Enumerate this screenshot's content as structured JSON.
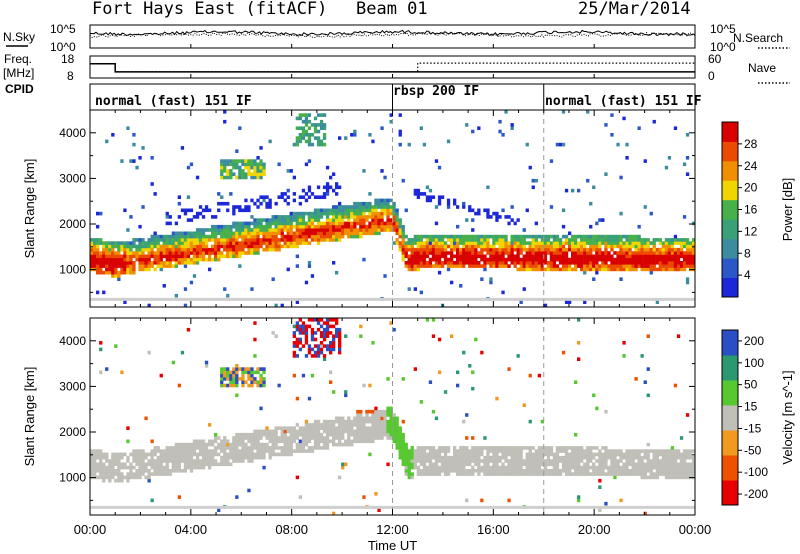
{
  "header": {
    "title": "Fort Hays East (fitACF)",
    "beam": "Beam 01",
    "date": "25/Mar/2014"
  },
  "noise_panel": {
    "left_label": "N.Sky",
    "left_ticks": [
      "10^5",
      "10^0"
    ],
    "right_ticks": [
      "10^5",
      "10^0"
    ],
    "right_label": "N.Search"
  },
  "freq_panel": {
    "left_label_1": "Freq.",
    "left_label_2": "[MHz]",
    "left_ticks": [
      "18",
      "8"
    ],
    "right_ticks": [
      "60",
      "0"
    ],
    "right_label": "Nave",
    "freq_series": [
      {
        "t": 0,
        "v": 14.8
      },
      {
        "t": 1,
        "v": 14.8
      },
      {
        "t": 1,
        "v": 10.3
      },
      {
        "t": 24,
        "v": 10.3
      }
    ],
    "nave_series": [
      {
        "t": 0,
        "v": 41
      },
      {
        "t": 1,
        "v": 41
      },
      {
        "t": 1,
        "v": 14
      },
      {
        "t": 12,
        "v": 14
      },
      {
        "t": 13,
        "v": 14
      },
      {
        "t": 13,
        "v": 43
      },
      {
        "t": 24,
        "v": 43
      }
    ]
  },
  "cpid": {
    "label": "CPID",
    "segments": [
      {
        "start": 0,
        "end": 12,
        "name": "normal (fast) 151 IF"
      },
      {
        "start": 12,
        "end": 18,
        "name": "rbsp 200 IF"
      },
      {
        "start": 18,
        "end": 24,
        "name": "normal (fast) 151 IF"
      }
    ]
  },
  "time_axis": {
    "label": "Time UT",
    "ticks": [
      "00:00",
      "04:00",
      "08:00",
      "12:00",
      "16:00",
      "20:00",
      "00:00"
    ],
    "tick_hours": [
      0,
      4,
      8,
      12,
      16,
      20,
      24
    ]
  },
  "colors": {
    "power": [
      "#1c28d8",
      "#2a58c8",
      "#3c8ca0",
      "#3aa078",
      "#48b04a",
      "#f0d600",
      "#f09000",
      "#ec4a00",
      "#d80000"
    ],
    "velocity": [
      "#e60000",
      "#ee5200",
      "#f09a20",
      "#c0bfb8",
      "#58c830",
      "#2c9870",
      "#2a4fc4"
    ],
    "gate_gray": "#cfcfcf"
  },
  "chart_data": [
    {
      "type": "heatmap",
      "name": "power",
      "ylabel": "Slant Range [km]",
      "xlabel": "Time UT",
      "x_range_hours": [
        0,
        24
      ],
      "ylim": [
        180,
        4500
      ],
      "y_ticks": [
        1000,
        2000,
        3000,
        4000
      ],
      "colorbar": {
        "label": "Power [dB]",
        "ticks": [
          4,
          8,
          12,
          16,
          20,
          24,
          28
        ],
        "range": [
          0,
          32
        ]
      },
      "features": [
        {
          "desc": "main ionospheric band",
          "points": [
            [
              0,
              1120
            ],
            [
              1,
              1000
            ],
            [
              3,
              1200
            ],
            [
              5,
              1650
            ],
            [
              7,
              1800
            ],
            [
              9,
              1900
            ],
            [
              11,
              1950
            ],
            [
              12,
              1500
            ],
            [
              12.5,
              1100
            ],
            [
              13,
              1200
            ],
            [
              15,
              1180
            ],
            [
              18,
              1150
            ],
            [
              21,
              1150
            ],
            [
              24,
              1100
            ]
          ]
        },
        {
          "desc": "upper patches",
          "points": [
            [
              5.5,
              3300
            ],
            [
              6.5,
              3200
            ],
            [
              8.5,
              4100
            ],
            [
              9,
              3800
            ],
            [
              13,
              2600
            ],
            [
              15,
              2300
            ],
            [
              17,
              1800
            ]
          ]
        }
      ]
    },
    {
      "type": "heatmap",
      "name": "velocity",
      "ylabel": "Slant Range [km]",
      "xlabel": "Time UT",
      "x_range_hours": [
        0,
        24
      ],
      "ylim": [
        180,
        4500
      ],
      "y_ticks": [
        1000,
        2000,
        3000,
        4000
      ],
      "colorbar": {
        "label": "Velocity [m s^-1]",
        "ticks": [
          200,
          100,
          50,
          15,
          -15,
          -50,
          -100,
          -200
        ],
        "range": [
          -250,
          250
        ]
      },
      "features": [
        {
          "desc": "low-velocity ground scatter band",
          "points": [
            [
              0,
              1100
            ],
            [
              2,
              1000
            ],
            [
              5,
              1500
            ],
            [
              8,
              2300
            ],
            [
              11,
              2400
            ],
            [
              13,
              1400
            ],
            [
              24,
              1200
            ]
          ]
        },
        {
          "desc": "positive velocity streak near 12 UT",
          "points": [
            [
              12,
              1800
            ],
            [
              12.5,
              1200
            ]
          ]
        }
      ]
    }
  ]
}
